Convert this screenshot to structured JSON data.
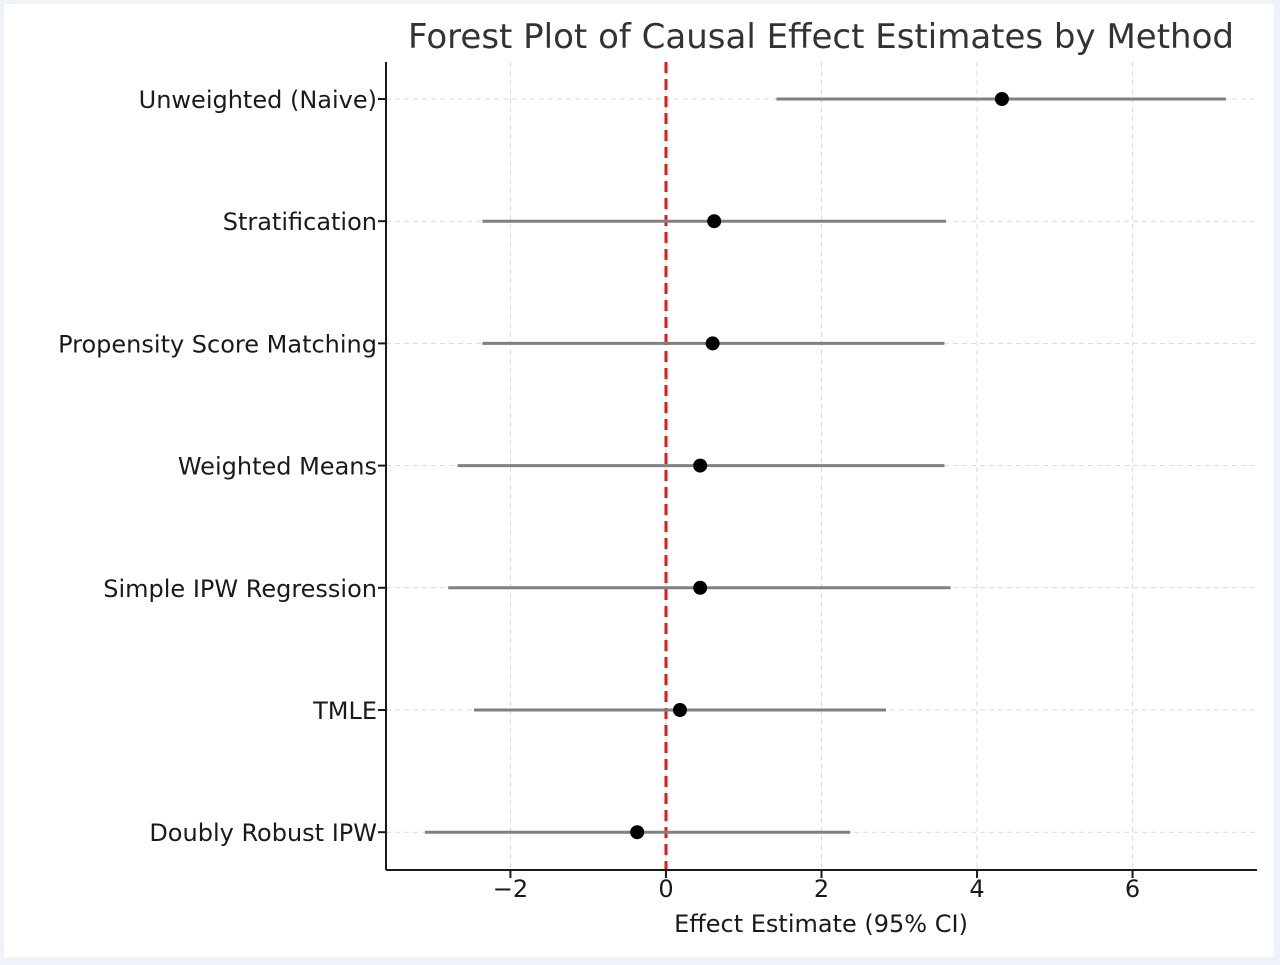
{
  "chart_data": {
    "type": "forest",
    "title": "Forest Plot of Causal Effect Estimates by Method",
    "xlabel": "Effect Estimate (95% CI)",
    "ylabel": "",
    "xlim": [
      -3.6,
      7.6
    ],
    "xticks": [
      -2,
      0,
      2,
      4,
      6
    ],
    "xtick_labels": [
      "−2",
      "0",
      "2",
      "4",
      "6"
    ],
    "grid": true,
    "reference_line": {
      "x": 0,
      "style": "dashed",
      "color": "#e41a1c"
    },
    "colors": {
      "ci_line": "#808080",
      "point": "#000000",
      "grid": "#d9d9d9",
      "axis": "#1a1a1a"
    },
    "categories": [
      "Unweighted (Naive)",
      "Stratification",
      "Propensity Score Matching",
      "Weighted Means",
      "Simple IPW Regression",
      "TMLE",
      "Doubly Robust IPW"
    ],
    "estimates": [
      4.32,
      0.62,
      0.6,
      0.44,
      0.44,
      0.18,
      -0.37
    ],
    "ci_lower": [
      1.42,
      -2.36,
      -2.36,
      -2.68,
      -2.8,
      -2.47,
      -3.1
    ],
    "ci_upper": [
      7.2,
      3.6,
      3.58,
      3.58,
      3.66,
      2.83,
      2.37
    ]
  }
}
